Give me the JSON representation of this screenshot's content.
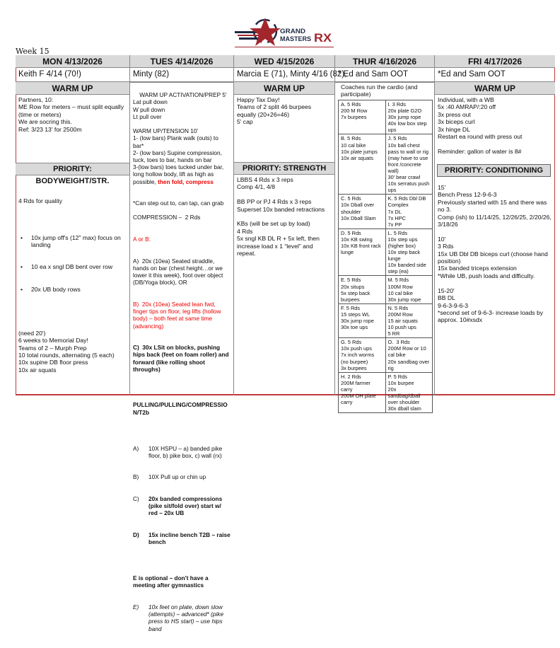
{
  "logo": {
    "text_line1": "GRAND",
    "text_line2": "MASTERS",
    "text_rx": "RX",
    "colors": {
      "red": "#a3262c",
      "navy": "#1f2a44"
    }
  },
  "week_label": "Week 15",
  "days": [
    {
      "header": "MON 4/13/2026",
      "names": "Keith F 4/14 (70!)",
      "warmup_title": "WARM UP",
      "warmup": "Partners, 10:\nME Row for meters – must split equally (time or meters)\nWe are socring this.\nRef: 3/23 13' for 2500m",
      "priority_title": "PRIORITY: BODYWEIGHT/STR.",
      "priority_intro": "4 Rds for quality",
      "priority_bullets": [
        "10x jump off's (12\" max) focus on landing",
        "10 ea x sngl DB bent over row",
        "20x UB body rows"
      ],
      "priority_rest": "(need 20')\n6 weeks to Memorial Day!\nTeams of 2 – Murph Prep\n10 total rounds, alternating (5 each)\n10x supine DB floor press\n10x air squats"
    },
    {
      "header": "TUES   4/14/2026",
      "names": "Minty (82)",
      "p1": "WARM UP ACTIVATION/PREP 5'\nLat pull down\nW pull down\nLt pull over\n\nWARM UP/TENSION 10'\n1- (low bars) Plank walk (outs) to bar*\n2- (low bars) Supine compression, tuck, toes to bar, hands on bar\n3-(low bars) toes tucked under bar, long hollow body, lift as high as possible, ",
      "p1_red": "then fold, compress",
      "p2": "*Can step out to, can tap, can grab\n\nCOMPRESSION –  2 Rds",
      "a_or_b": "A or B:",
      "opt_a": "A)  20x (10ea) Seated straddle, hands on bar (chest height…or we lower it this week), foot over object (DB/Yoga block), OR",
      "opt_b": "B)  20x (10ea) Seated lean fwd, finger tips on floor, leg lifts (hollow body) – both feet at same time (advancing)",
      "opt_c": "C)  30x LSit on blocks, pushing hips back (feet on foam roller) and forward (like rolling shoot throughs)",
      "pulling_title": "PULLING/PULLING/COMPRESSION/T2b",
      "pulling_items": [
        {
          "label": "A)",
          "text": "10X HSPU – a) banded pike floor, b) pike box, c) wall (rx)",
          "style": ""
        },
        {
          "label": "B)",
          "text": "10X Pull up or chin up",
          "style": ""
        },
        {
          "label": "C)",
          "text": "20x banded compressions (pike sit/fold over) start w/ red – 20x UB",
          "style": "b"
        },
        {
          "label": "D)",
          "text": "15x incline bench T2B – raise bench",
          "style": "b"
        }
      ],
      "optional_note": "E is optional – don't have a meeting after gymnastics",
      "opt_e_label": "E)",
      "opt_e": "10x feet on plate, down slow (attempts) – advanced* (pike press to HS start) – use hips band"
    },
    {
      "header": "WED 4/15/2026",
      "names": "Marcia E (71), Minty 4/16 (82),",
      "warmup_title": "WARM UP",
      "warmup": "Happy Tax Day!\nTeams of 2 split 46 burpees equally (20+26=46)\n5' cap",
      "priority_title": "PRIORITY: STRENGTH",
      "priority": "LBBS 4 Rds x 3 reps\nComp 4/1, 4/8\n\nBB PP or PJ 4 Rds x 3 reps\nSuperset 10x banded retractions\n\nKBs (will be set up by load)\n4 Rds\n5x sngl KB DL R + 5x left, then increase load x 1 “level” and repeat."
    },
    {
      "header": "THUR 4/16/2026",
      "names": "* Ed and Sam OOT",
      "intro": "Coaches run the cardio (and participate)",
      "stations": [
        [
          "A. 5 Rds\n200 M Row\n7x burpees",
          "I. 3 Rds\n20x plate G2O\n30x jump rope\n40x low box step ups"
        ],
        [
          "B. 5 Rds\n10 cal bike\n10x plate jumps\n10x air squats",
          "J. 5 Rds\n10x ball chest pass to wall or rig (may have to use front /concrete wall)\n30' bear crawl\n10x serratus push ups"
        ],
        [
          "C. 5 Rds\n10x Dball over shoulder\n10x Dball Slam",
          "K. 5 Rds Dbl DB Complex\n7x DL\n7x HPC\n7x PP"
        ],
        [
          "D. 5 Rds\n10x KB swing\n10x KB front rack lunge",
          "L. 5 Rds\n10x step ups (higher box)\n10x step back lunge\n10x banded side step (ea)"
        ],
        [
          "E. 5 Rds\n20x situps\n5x step back burpees",
          "M. 5 Rds\n100M Row\n10 cal bike\n30x jump rope"
        ],
        [
          "F. 5 Rds\n15 steps WL\n30x jump rope\n30x toe ups",
          "N. 5 Rds\n200M Row\n15 air squats\n10 push ups\n5 RR"
        ],
        [
          "G. 5 Rds\n10x push ups\n7x inch worms (no burpee)\n3x burpees",
          "O.  3 Rds\n200M Row or 10 cal bike\n20x sandbag over rig"
        ],
        [
          "H. 2 Rds\n200M farmer carry\n200M OH plate carry",
          "P. 5 Rds\n10x burpee\n20x sandbag/dball over shoulder\n30x dball slam"
        ]
      ]
    },
    {
      "header": "FRI 4/17/2026",
      "names": "*Ed and Sam OOT",
      "warmup_title": "WARM UP",
      "warmup": "Individual, with a WB\n5x :40 AMRAP/:20 off\n3x press out\n3x biceps curl\n3x hinge DL\nRestart ea round with press out\n\nReminder: gallon of water is 8#",
      "priority_title": "PRIORITY:  CONDITIONING",
      "priority": "15'\nBench Press 12-9-6-3\nPreviously started with 15 and there was no 3.\nComp (ish) to 11/14/25, 12/26/25, 2/20/26, 3/18/26\n\n10'\n3 Rds\n15x UB Dbl DB biceps curl (choose hand position)\n15x banded triceps extension\n*While UB, push loads and difficulty.\n\n15-20'\nBB DL\n9-6-3-9-6-3\n*second set of 9-6-3- increase loads by approx. 10#xsdx"
    }
  ]
}
